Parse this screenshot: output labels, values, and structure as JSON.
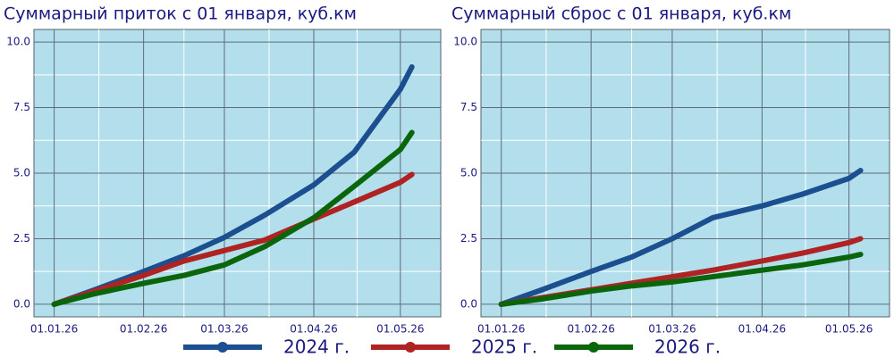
{
  "chart_data": [
    {
      "type": "line",
      "title": "Суммарный приток с 01 января, куб.км",
      "x": [
        "01.01.26",
        "15.01.26",
        "01.02.26",
        "15.02.26",
        "01.03.26",
        "15.03.26",
        "01.04.26",
        "15.04.26",
        "01.05.26",
        "05.05.26"
      ],
      "xlim": [
        "25.12.25",
        "15.05.26"
      ],
      "xticks": [
        "01.01.26",
        "01.02.26",
        "01.03.26",
        "01.04.26",
        "01.05.26"
      ],
      "ylim": [
        -0.48,
        10.48
      ],
      "yticks": [
        {
          "value": 0,
          "label": "0.0"
        },
        2.5,
        {
          "value": 5,
          "label": "5.0"
        },
        7.5,
        {
          "value": 10,
          "label": "10.0"
        }
      ],
      "grid": true,
      "series": [
        {
          "name": "2024 г.",
          "color": "#1c4f8f",
          "values": [
            0,
            0.55,
            1.25,
            1.85,
            2.55,
            3.4,
            4.55,
            5.8,
            8.2,
            9.05
          ]
        },
        {
          "name": "2025 г.",
          "color": "#b02323",
          "values": [
            0,
            0.5,
            1.1,
            1.65,
            2.05,
            2.45,
            3.25,
            3.9,
            4.65,
            4.95
          ]
        },
        {
          "name": "2026 г.",
          "color": "#0b660b",
          "values": [
            0,
            0.4,
            0.8,
            1.1,
            1.5,
            2.2,
            3.3,
            4.5,
            5.9,
            6.55
          ]
        }
      ]
    },
    {
      "type": "line",
      "title": "Суммарный сброс с 01 января, куб.км",
      "x": [
        "01.01.26",
        "15.01.26",
        "01.02.26",
        "15.02.26",
        "01.03.26",
        "15.03.26",
        "01.04.26",
        "15.04.26",
        "01.05.26",
        "05.05.26"
      ],
      "xlim": [
        "25.12.25",
        "15.05.26"
      ],
      "xticks": [
        "01.01.26",
        "01.02.26",
        "01.03.26",
        "01.04.26",
        "01.05.26"
      ],
      "ylim": [
        -0.48,
        10.48
      ],
      "yticks": [
        {
          "value": 0,
          "label": "0.0"
        },
        2.5,
        {
          "value": 5,
          "label": "5.0"
        },
        7.5,
        {
          "value": 10,
          "label": "10.0"
        }
      ],
      "grid": true,
      "series": [
        {
          "color": "#1c4f8f",
          "values": [
            0,
            0.55,
            1.25,
            1.8,
            2.5,
            3.3,
            3.75,
            4.2,
            4.8,
            5.1
          ]
        },
        {
          "color": "#b02323",
          "values": [
            0,
            0.25,
            0.55,
            0.8,
            1.05,
            1.3,
            1.65,
            1.95,
            2.35,
            2.5
          ]
        },
        {
          "color": "#0b660b",
          "values": [
            0,
            0.2,
            0.5,
            0.7,
            0.85,
            1.05,
            1.3,
            1.5,
            1.8,
            1.9
          ]
        }
      ]
    }
  ]
}
